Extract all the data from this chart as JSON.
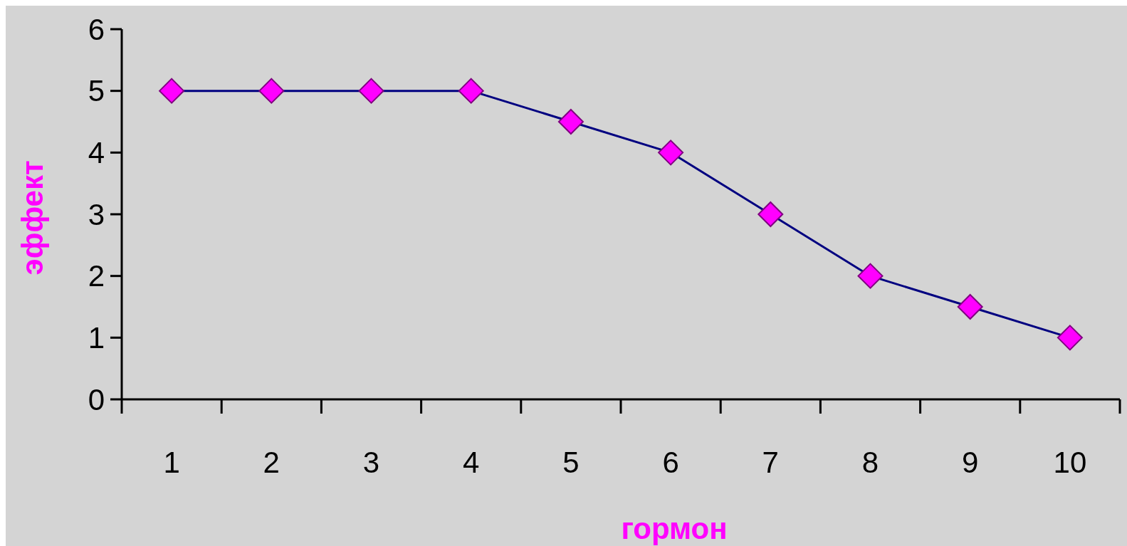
{
  "chart_data": {
    "type": "line",
    "xlabel": "гормон",
    "ylabel": "эффект",
    "categories": [
      "1",
      "2",
      "3",
      "4",
      "5",
      "6",
      "7",
      "8",
      "9",
      "10"
    ],
    "series": [
      {
        "color": "#000080",
        "values": [
          5,
          5,
          5,
          5,
          4.5,
          4,
          3,
          2,
          1.5,
          1
        ]
      }
    ],
    "ylim": [
      0,
      6
    ],
    "yticks": [
      0,
      1,
      2,
      3,
      4,
      5,
      6
    ],
    "grid": false,
    "marker": "diamond",
    "line_style": "solid"
  }
}
